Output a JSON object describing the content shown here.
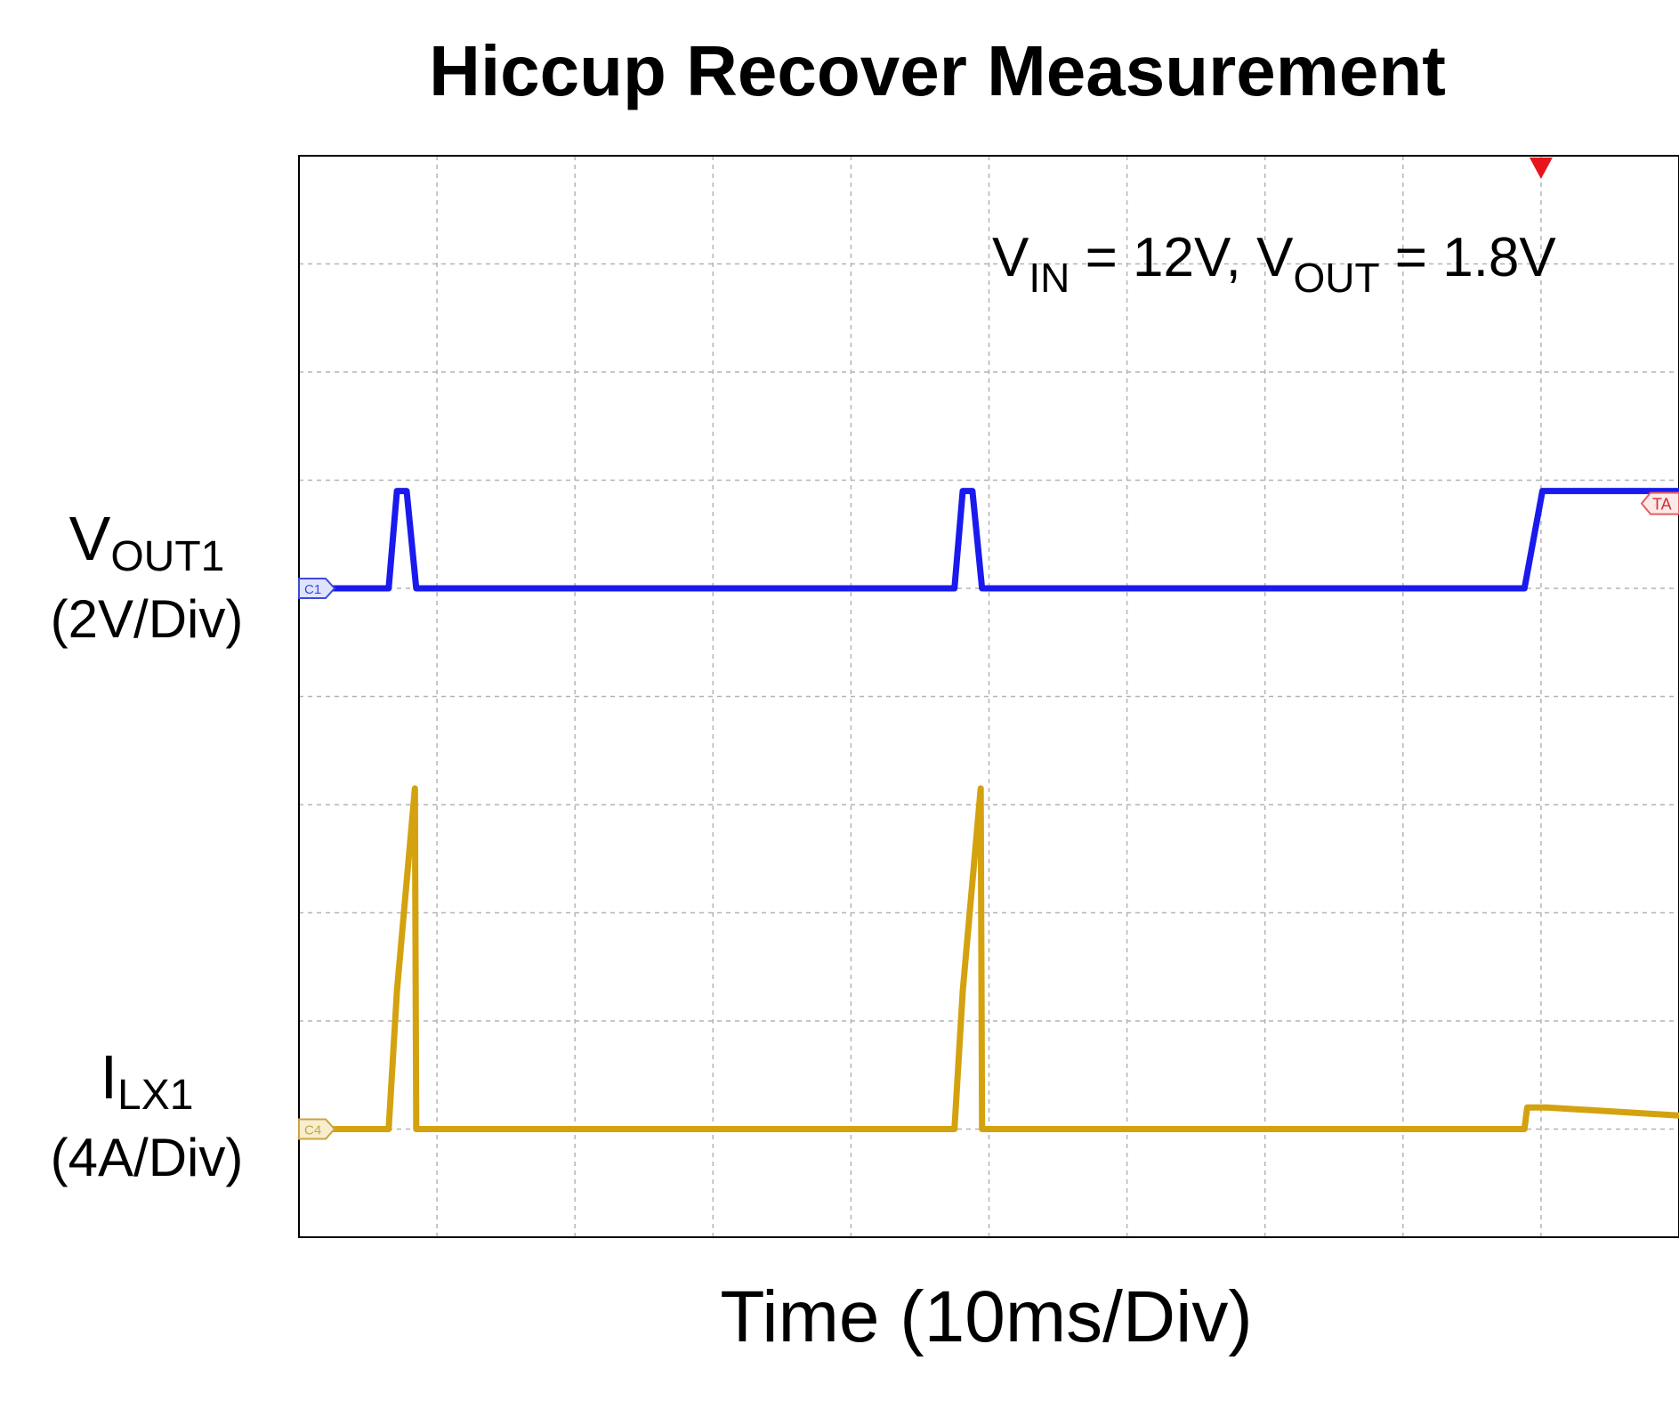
{
  "chart_data": {
    "type": "line",
    "title": "Hiccup Recover Measurement",
    "xlabel": "Time (10ms/Div)",
    "annotation": {
      "vin_symbol": "V",
      "vin_sub": "IN",
      "vin_value": " = 12V, ",
      "vout_symbol": "V",
      "vout_sub": "OUT",
      "vout_value": " = 1.8V"
    },
    "x_divisions": 10,
    "y_divisions": 10,
    "grid": true,
    "xlim": [
      0,
      100
    ],
    "ylim_div": [
      -5,
      5
    ],
    "channel_markers": {
      "ch1": "C1",
      "ch2": "C4",
      "trigger": "TA"
    },
    "trigger_x_ms": 90,
    "series": [
      {
        "channel": "ch1",
        "color": "#1a1aee",
        "label_symbol": "V",
        "label_sub": "OUT1",
        "scale": "(2V/Div)",
        "offset_div": 1,
        "volts_per_div": 2,
        "points": [
          [
            0,
            0
          ],
          [
            6.5,
            0
          ],
          [
            7.1,
            1.8
          ],
          [
            7.8,
            1.8
          ],
          [
            8.5,
            0
          ],
          [
            47.5,
            0
          ],
          [
            48.1,
            1.8
          ],
          [
            48.8,
            1.8
          ],
          [
            49.5,
            0
          ],
          [
            88.8,
            0
          ],
          [
            90.1,
            1.8
          ],
          [
            100,
            1.8
          ]
        ]
      },
      {
        "channel": "ch2",
        "color": "#d4a20f",
        "label_symbol": "I",
        "label_sub": "LX1",
        "scale": "(4A/Div)",
        "offset_div": -4,
        "amps_per_div": 4,
        "points": [
          [
            0,
            0
          ],
          [
            6.5,
            0
          ],
          [
            7.1,
            5.1
          ],
          [
            8.4,
            12.6
          ],
          [
            8.5,
            0
          ],
          [
            47.5,
            0
          ],
          [
            48.1,
            5.1
          ],
          [
            49.4,
            12.6
          ],
          [
            49.5,
            0
          ],
          [
            88.8,
            0
          ],
          [
            89.0,
            0.8
          ],
          [
            90.4,
            0.8
          ],
          [
            100,
            0.5
          ]
        ]
      }
    ]
  }
}
